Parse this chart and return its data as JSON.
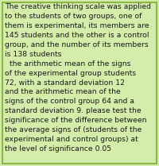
{
  "text": "The creative thinking scale was applied\nto the students of two groups, one of\nthem is experimental, its members are\n145 students and the other is a control\ngroup, and the number of its members\nis 138 students\n  the arithmetic mean of the signs\nof the experimental group students\n72, with a standard deviation 12\nand the arithmetic mean of the\nsigns of the control group 64 and a\nstandard deviation 9. please test the\nsignificance of the difference between\nthe average signs of (students of the\nexperimental and control groups) at\nthe level of significance 0.05",
  "background_color": "#d4edaa",
  "text_color": "#1a1a1a",
  "font_size": 6.7,
  "border_color": "#8cb84a",
  "border_linewidth": 1.5,
  "fig_width": 2.0,
  "fig_height": 2.09,
  "dpi": 100
}
